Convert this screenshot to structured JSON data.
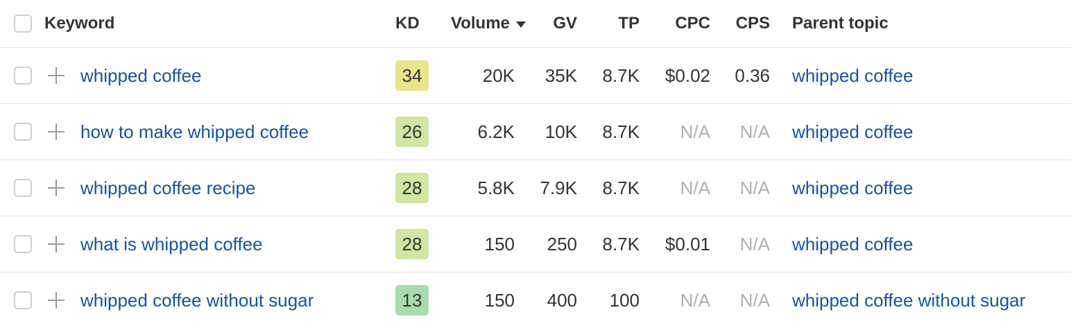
{
  "header": {
    "keyword": "Keyword",
    "kd": "KD",
    "volume": "Volume",
    "gv": "GV",
    "tp": "TP",
    "cpc": "CPC",
    "cps": "CPS",
    "parent_topic": "Parent topic",
    "sort_icon": "caret-down-icon"
  },
  "colors": {
    "link": "#16539e",
    "na": "#b0b0b0",
    "kd_34": "#e9e58a",
    "kd_26": "#d2e6a4",
    "kd_28": "#d2e6a4",
    "kd_13": "#a9dbac"
  },
  "rows": [
    {
      "keyword": "whipped coffee",
      "kd": "34",
      "volume": "20K",
      "gv": "35K",
      "tp": "8.7K",
      "cpc": "$0.02",
      "cps": "0.36",
      "parent_topic": "whipped coffee"
    },
    {
      "keyword": "how to make whipped coffee",
      "kd": "26",
      "volume": "6.2K",
      "gv": "10K",
      "tp": "8.7K",
      "cpc": "N/A",
      "cps": "N/A",
      "parent_topic": "whipped coffee"
    },
    {
      "keyword": "whipped coffee recipe",
      "kd": "28",
      "volume": "5.8K",
      "gv": "7.9K",
      "tp": "8.7K",
      "cpc": "N/A",
      "cps": "N/A",
      "parent_topic": "whipped coffee"
    },
    {
      "keyword": "what is whipped coffee",
      "kd": "28",
      "volume": "150",
      "gv": "250",
      "tp": "8.7K",
      "cpc": "$0.01",
      "cps": "N/A",
      "parent_topic": "whipped coffee"
    },
    {
      "keyword": "whipped coffee without sugar",
      "kd": "13",
      "volume": "150",
      "gv": "400",
      "tp": "100",
      "cpc": "N/A",
      "cps": "N/A",
      "parent_topic": "whipped coffee without sugar"
    }
  ]
}
